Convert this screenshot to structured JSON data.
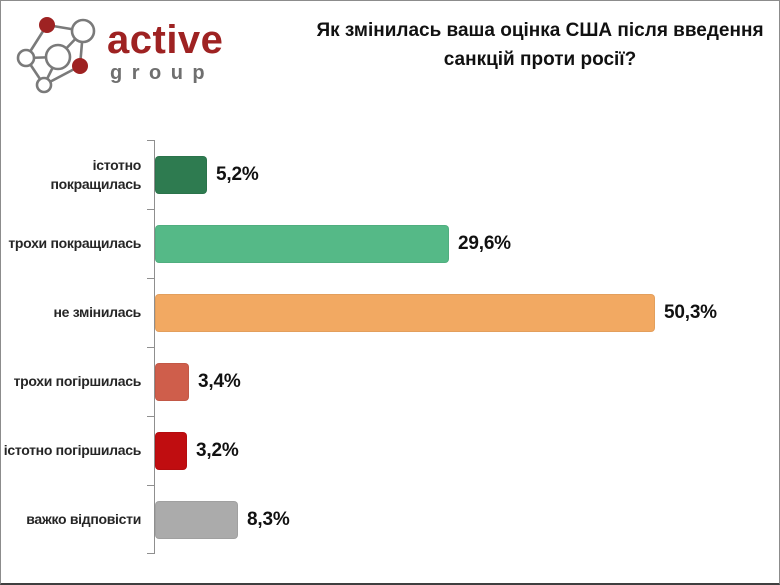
{
  "logo": {
    "brand_primary": "active",
    "brand_secondary": "group",
    "primary_color": "#9e2222",
    "secondary_color": "#6f6f6f"
  },
  "title": "Як змінилась ваша оцінка США після введення санкцій проти росії?",
  "chart_data": {
    "type": "bar",
    "orientation": "horizontal",
    "title": "Як змінилась ваша оцінка США після введення санкцій проти росії?",
    "xlabel": "",
    "ylabel": "",
    "unit": "%",
    "xlim": [
      0,
      55
    ],
    "grid": false,
    "legend": "none",
    "categories": [
      "істотно покращилась",
      "трохи покращилась",
      "не змінилась",
      "трохи погіршилась",
      "істотно погіршилась",
      "важко відповісти"
    ],
    "values": [
      5.2,
      29.6,
      50.3,
      3.4,
      3.2,
      8.3
    ],
    "items": [
      {
        "label": "істотно\nпокращилась",
        "value": 5.2,
        "display": "5,2%",
        "color": "#2e7b50"
      },
      {
        "label": "трохи покращилась",
        "value": 29.6,
        "display": "29,6%",
        "color": "#55b987"
      },
      {
        "label": "не змінилась",
        "value": 50.3,
        "display": "50,3%",
        "color": "#f2a962"
      },
      {
        "label": "трохи погіршилась",
        "value": 3.4,
        "display": "3,4%",
        "color": "#cf5e4b"
      },
      {
        "label": "істотно погіршилась",
        "value": 3.2,
        "display": "3,2%",
        "color": "#c00d10"
      },
      {
        "label": "важко відповісти",
        "value": 8.3,
        "display": "8,3%",
        "color": "#ababab"
      }
    ]
  }
}
